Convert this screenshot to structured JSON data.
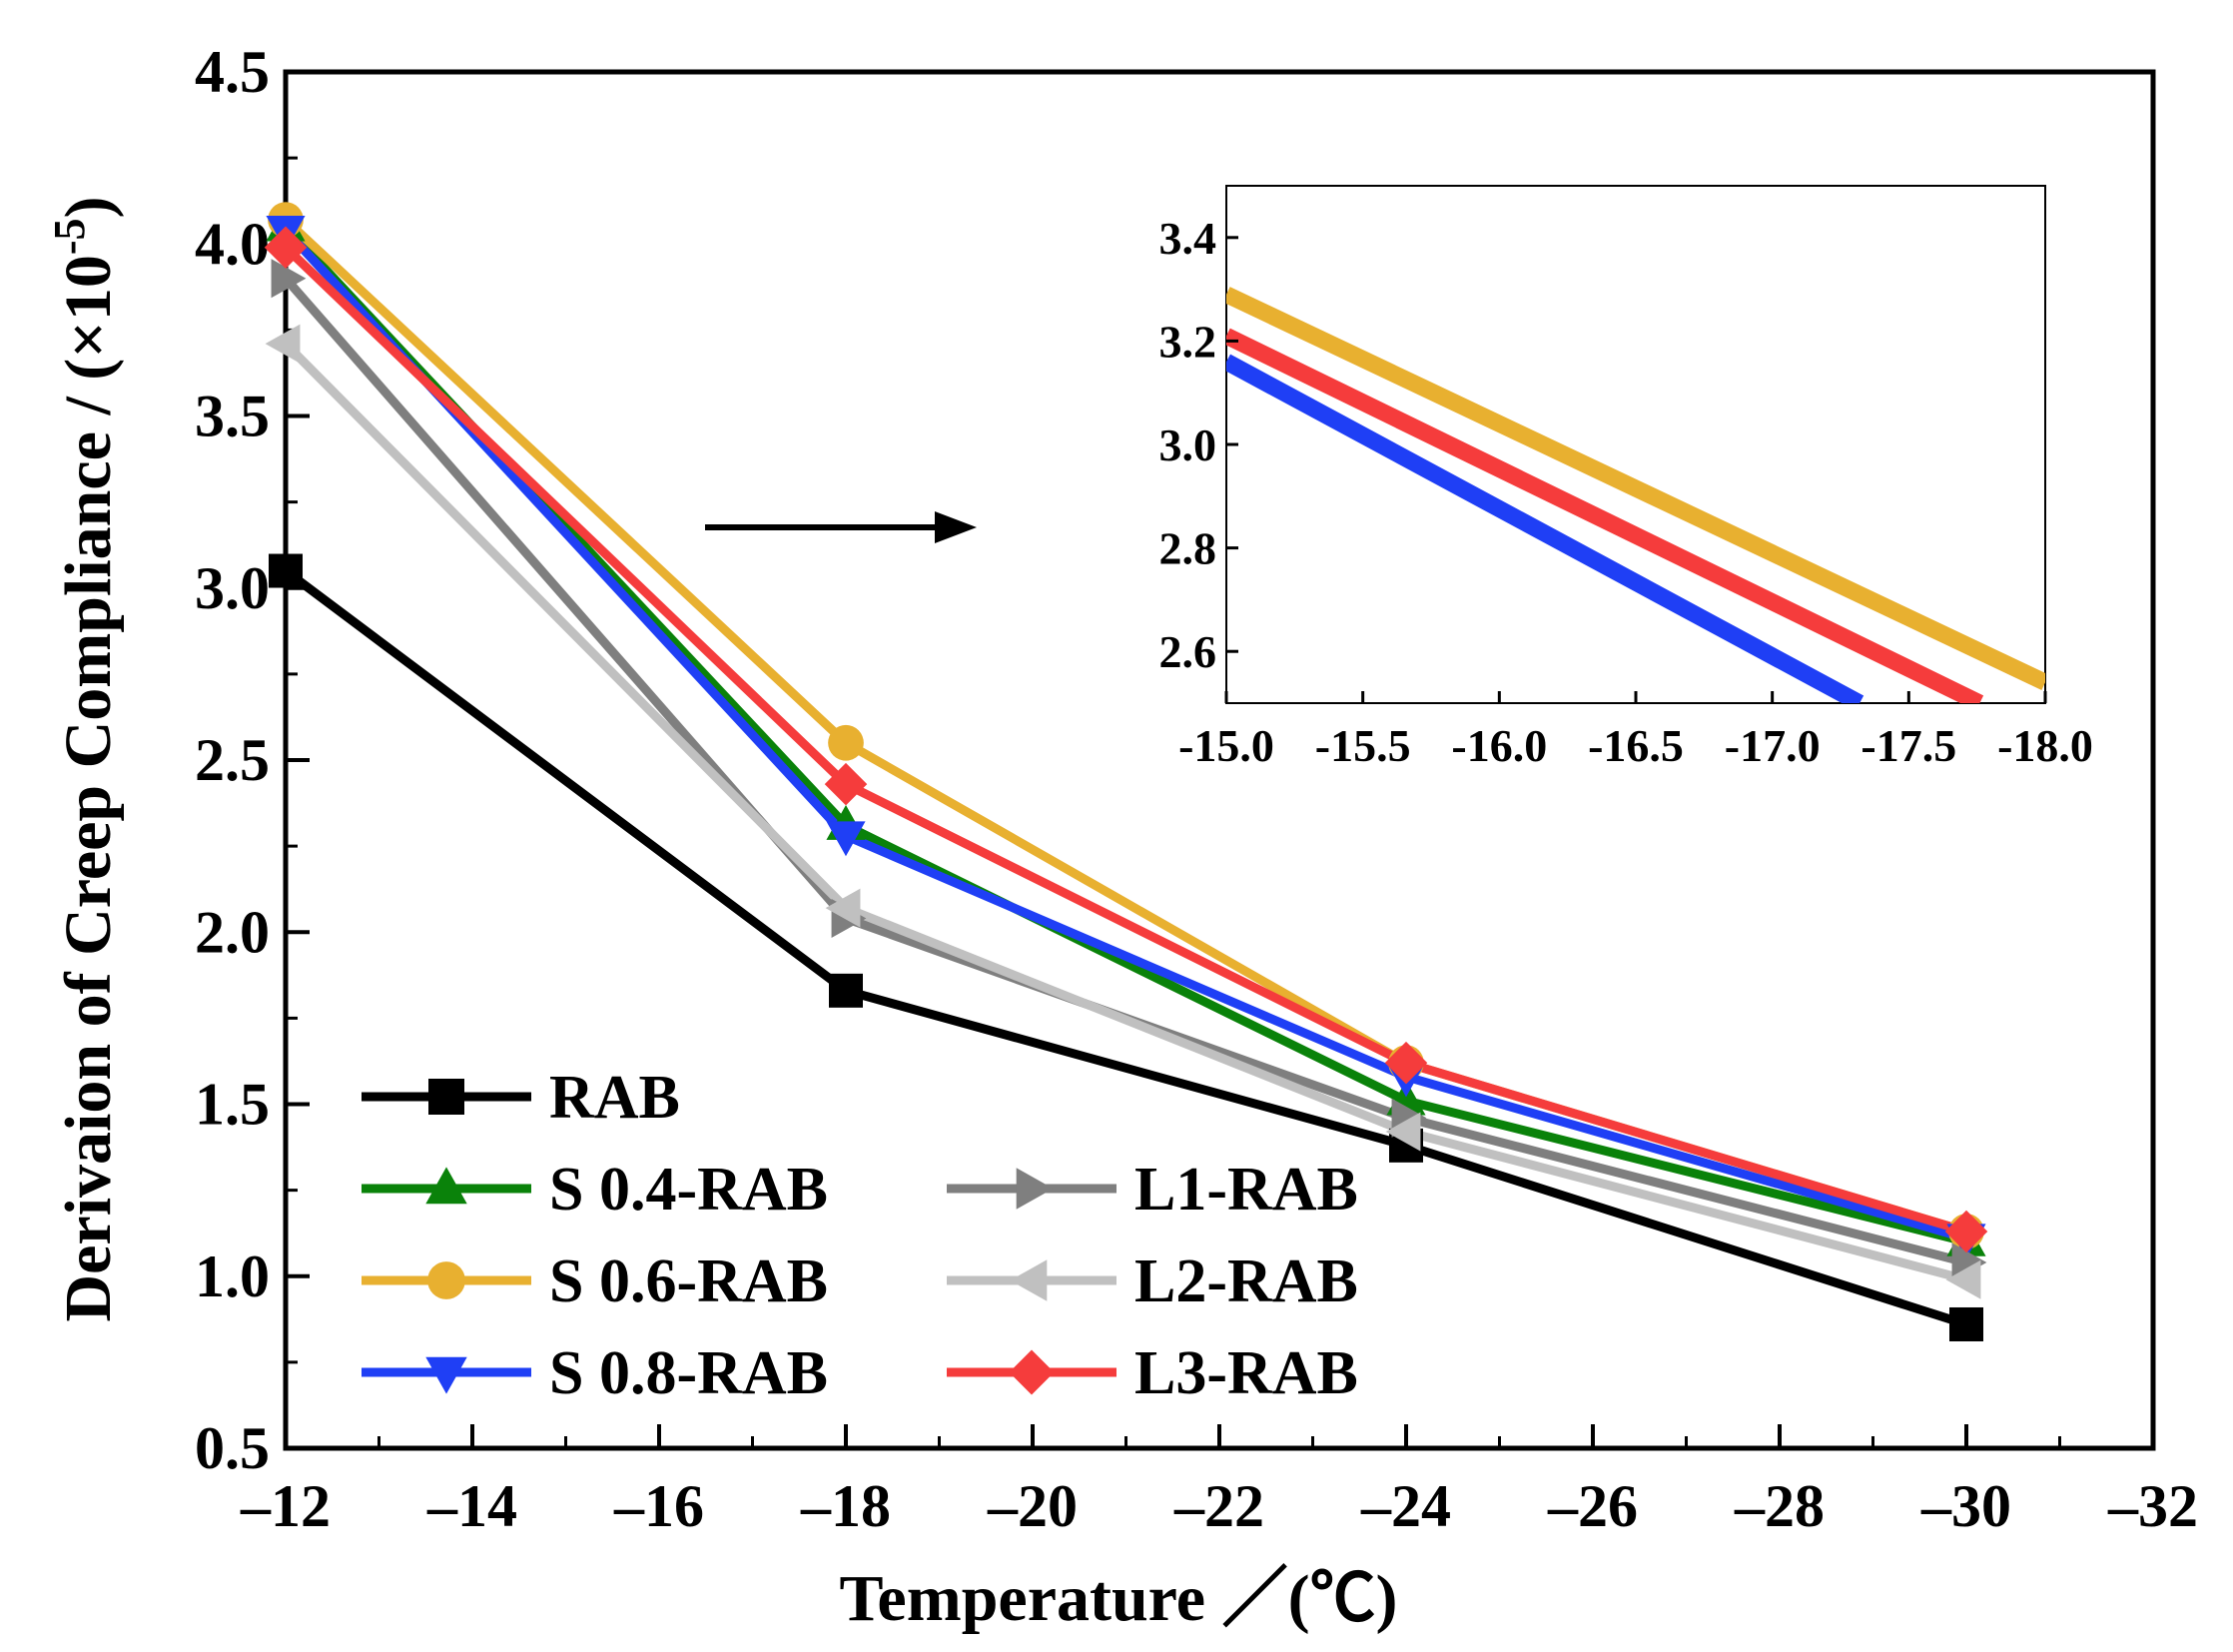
{
  "chart_data": [
    {
      "type": "line",
      "xlabel": "Temperature ／(℃)",
      "ylabel": "Derivaion of Creep Compliance / (×10",
      "ylabel_exponent": "-5",
      "ylabel_close": ")",
      "xlim": [
        -12,
        -32
      ],
      "ylim": [
        0.5,
        4.5
      ],
      "x_ticks": [
        -12,
        -14,
        -16,
        -18,
        -20,
        -22,
        -24,
        -26,
        -28,
        -30,
        -32
      ],
      "x_tick_labels": [
        "–12",
        "–14",
        "–16",
        "–18",
        "–20",
        "–22",
        "–24",
        "–26",
        "–28",
        "–30",
        "–32"
      ],
      "y_ticks": [
        0.5,
        1.0,
        1.5,
        2.0,
        2.5,
        3.0,
        3.5,
        4.0,
        4.5
      ],
      "y_tick_labels": [
        "0.5",
        "1.0",
        "1.5",
        "2.0",
        "2.5",
        "3.0",
        "3.5",
        "4.0",
        "4.5"
      ],
      "grid": false,
      "legend_position": "bottom-left",
      "x": [
        -12,
        -18,
        -24,
        -30
      ],
      "series": [
        {
          "name": "RAB",
          "color": "#000000",
          "marker": "square",
          "values": [
            3.05,
            1.83,
            1.38,
            0.86
          ]
        },
        {
          "name": "S 0.4-RAB",
          "color": "#0a820a",
          "marker": "triangle-up",
          "values": [
            4.05,
            2.31,
            1.51,
            1.1
          ]
        },
        {
          "name": "S 0.6-RAB",
          "color": "#e8b030",
          "marker": "circle",
          "values": [
            4.07,
            2.55,
            1.62,
            1.13
          ]
        },
        {
          "name": "S 0.8-RAB",
          "color": "#1f3ff5",
          "marker": "triangle-down",
          "values": [
            4.04,
            2.28,
            1.58,
            1.11
          ]
        },
        {
          "name": "L1-RAB",
          "color": "#7f7f7f",
          "marker": "triangle-right",
          "values": [
            3.9,
            2.04,
            1.46,
            1.04
          ]
        },
        {
          "name": "L2-RAB",
          "color": "#c0c0c0",
          "marker": "triangle-left",
          "values": [
            3.71,
            2.07,
            1.42,
            0.99
          ]
        },
        {
          "name": "L3-RAB",
          "color": "#f53c3c",
          "marker": "diamond",
          "values": [
            3.99,
            2.43,
            1.62,
            1.13
          ]
        }
      ]
    },
    {
      "type": "line",
      "xlim": [
        -15.0,
        -18.0
      ],
      "ylim": [
        2.5,
        3.5
      ],
      "x_ticks": [
        -15.0,
        -15.5,
        -16.0,
        -16.5,
        -17.0,
        -17.5,
        -18.0
      ],
      "x_tick_labels": [
        "-15.0",
        "-15.5",
        "-16.0",
        "-16.5",
        "-17.0",
        "-17.5",
        "-18.0"
      ],
      "y_ticks": [
        2.6,
        2.8,
        3.0,
        3.2,
        3.4
      ],
      "y_tick_labels": [
        "2.6",
        "2.8",
        "3.0",
        "3.2",
        "3.4"
      ],
      "grid": false,
      "series": [
        {
          "name": "S 0.6-RAB",
          "color": "#e8b030",
          "x": [
            -15.0,
            -18.0
          ],
          "values": [
            3.29,
            2.54
          ]
        },
        {
          "name": "L3-RAB",
          "color": "#f53c3c",
          "x": [
            -15.0,
            -17.76
          ],
          "values": [
            3.21,
            2.5
          ]
        },
        {
          "name": "S 0.8-RAB",
          "color": "#1f3ff5",
          "x": [
            -15.0,
            -17.32
          ],
          "values": [
            3.16,
            2.5
          ]
        }
      ]
    }
  ]
}
